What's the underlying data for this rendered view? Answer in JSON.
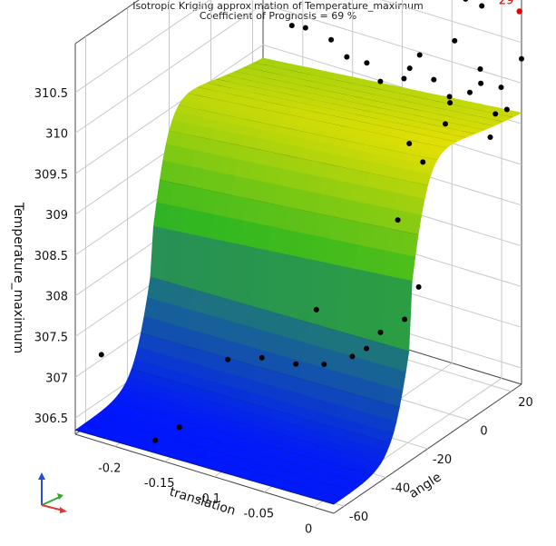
{
  "chart_data": {
    "type": "surface3d",
    "title": "Isotropic Kriging approximation of Temperature_maximum",
    "subtitle": "Coefficient of Prognosis = 69 %",
    "xlabel": "translation",
    "ylabel": "angle",
    "zlabel": "Temperature_maximum",
    "x_ticks": [
      "-0.2",
      "-0.15",
      "-0.1",
      "-0.05",
      "0"
    ],
    "y_ticks": [
      "-60",
      "-40",
      "-20",
      "0",
      "20"
    ],
    "z_ticks": [
      "306.5",
      "307",
      "307.5",
      "308",
      "308.5",
      "309",
      "309.5",
      "310",
      "310.5"
    ],
    "xlim": [
      -0.24,
      0.02
    ],
    "ylim": [
      -65,
      25
    ],
    "zlim": [
      306.3,
      311.1
    ],
    "highlight_label": "29",
    "colors": {
      "low": "#0016ff",
      "mid": "#33b81f",
      "high": "#ffe600",
      "top": "#e0401a",
      "highlight": "#e00000",
      "points": "#000000"
    },
    "points": [
      {
        "x": -0.22,
        "y": -62,
        "z": 307.3
      },
      {
        "x": -0.17,
        "y": -60,
        "z": 306.4
      },
      {
        "x": -0.15,
        "y": -58,
        "z": 306.6
      },
      {
        "x": -0.16,
        "y": -30,
        "z": 306.9
      },
      {
        "x": -0.13,
        "y": -28,
        "z": 307.0
      },
      {
        "x": -0.1,
        "y": -26,
        "z": 307.0
      },
      {
        "x": -0.08,
        "y": -22,
        "z": 307.0
      },
      {
        "x": -0.06,
        "y": -18,
        "z": 307.1
      },
      {
        "x": -0.05,
        "y": -16,
        "z": 307.2
      },
      {
        "x": -0.04,
        "y": -14,
        "z": 307.4
      },
      {
        "x": -0.02,
        "y": -12,
        "z": 307.6
      },
      {
        "x": -0.05,
        "y": -40,
        "z": 308.1
      },
      {
        "x": -0.01,
        "y": -10,
        "z": 308.0
      },
      {
        "x": -0.2,
        "y": 20,
        "z": 310.6
      },
      {
        "x": -0.19,
        "y": 18,
        "z": 310.4
      },
      {
        "x": -0.19,
        "y": 15,
        "z": 310.1
      },
      {
        "x": -0.17,
        "y": 12,
        "z": 310.2
      },
      {
        "x": -0.14,
        "y": 10,
        "z": 310.2
      },
      {
        "x": -0.12,
        "y": 8,
        "z": 310.1
      },
      {
        "x": -0.1,
        "y": 8,
        "z": 310.1
      },
      {
        "x": -0.08,
        "y": 5,
        "z": 310.0
      },
      {
        "x": -0.05,
        "y": 2,
        "z": 310.2
      },
      {
        "x": -0.04,
        "y": 0,
        "z": 310.4
      },
      {
        "x": -0.03,
        "y": 0,
        "z": 310.6
      },
      {
        "x": -0.02,
        "y": 2,
        "z": 310.3
      },
      {
        "x": 0.0,
        "y": 0,
        "z": 310.2
      },
      {
        "x": -0.01,
        "y": 5,
        "z": 310.0
      },
      {
        "x": 0.01,
        "y": 5,
        "z": 310.2
      },
      {
        "x": -0.03,
        "y": -5,
        "z": 309.6
      },
      {
        "x": -0.01,
        "y": -8,
        "z": 309.5
      },
      {
        "x": 0.0,
        "y": -2,
        "z": 309.9
      },
      {
        "x": 0.01,
        "y": 10,
        "z": 310.4
      },
      {
        "x": 0.0,
        "y": 15,
        "z": 310.1
      },
      {
        "x": -0.02,
        "y": 12,
        "z": 310.6
      },
      {
        "x": 0.01,
        "y": 20,
        "z": 310.0
      },
      {
        "x": 0.0,
        "y": 22,
        "z": 309.6
      },
      {
        "x": 0.02,
        "y": 18,
        "z": 309.8
      },
      {
        "x": 0.02,
        "y": 25,
        "z": 310.3
      },
      {
        "x": 0.02,
        "y": 10,
        "z": 309.6
      },
      {
        "x": -0.01,
        "y": -20,
        "z": 309.0
      },
      {
        "x": -0.03,
        "y": 22,
        "z": 310.9
      },
      {
        "x": -0.02,
        "y": 25,
        "z": 310.8
      }
    ],
    "highlight_point": {
      "x": 0.02,
      "y": 24,
      "z": 310.9
    }
  }
}
